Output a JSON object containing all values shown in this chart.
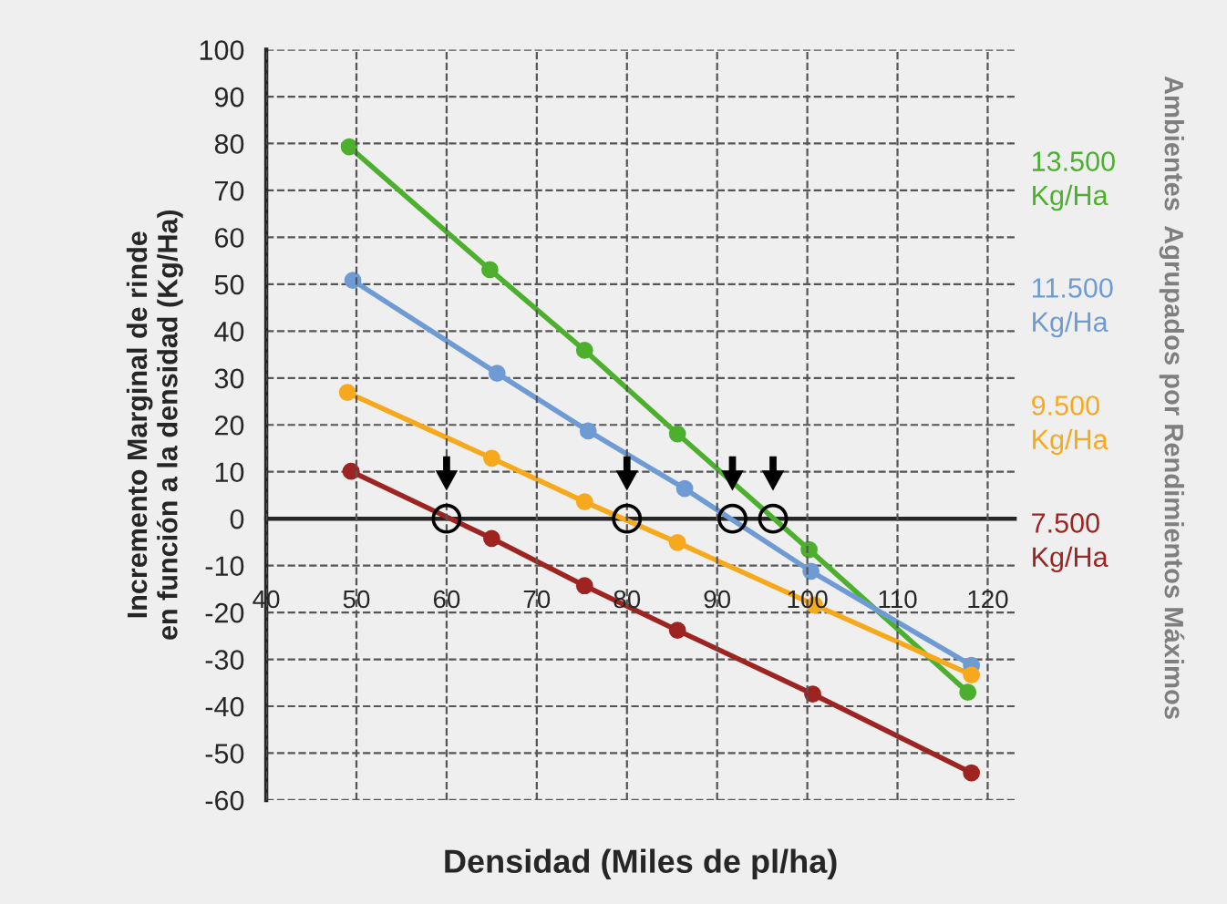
{
  "chart_data": {
    "type": "line",
    "xlabel": "Densidad (Miles de pl/ha)",
    "ylabel": "Incremento Marginal de rinde\nen función a la densidad (Kg/Ha)",
    "legend_title": "Ambientes  Agrupados por Rendimientos Máximos",
    "legend": "right",
    "marker": "circle",
    "line_style": "solid",
    "grid": true,
    "xlim": [
      40,
      123
    ],
    "xticks": [
      40,
      50,
      60,
      70,
      80,
      90,
      100,
      110,
      120
    ],
    "ylim": [
      -60,
      100
    ],
    "yticks": [
      -60,
      -50,
      -40,
      -30,
      -20,
      -10,
      0,
      10,
      20,
      30,
      40,
      50,
      60,
      70,
      80,
      90,
      100
    ],
    "series": [
      {
        "name": "13.500\nKg/Ha",
        "color": "#4cb02e",
        "x": [
          49.2,
          64.8,
          75.3,
          85.6,
          100.2,
          117.8
        ],
        "values": [
          79.3,
          53.1,
          35.9,
          18.1,
          -6.6,
          -37
        ]
      },
      {
        "name": "11.500\nKg/Ha",
        "color": "#6e9bd4",
        "x": [
          49.6,
          65.6,
          75.7,
          86.4,
          100.4,
          118.2
        ],
        "values": [
          50.8,
          31,
          18.7,
          6.4,
          -11.2,
          -31.3
        ]
      },
      {
        "name": "9.500\nKg/Ha",
        "color": "#f7a91d",
        "x": [
          49,
          65,
          75.3,
          85.6,
          100.8,
          118.2
        ],
        "values": [
          26.9,
          12.9,
          3.6,
          -5.1,
          -18.4,
          -33.3
        ]
      },
      {
        "name": "7.500\nKg/Ha",
        "color": "#9e2421",
        "x": [
          49.4,
          65,
          75.3,
          85.6,
          100.6,
          118.2
        ],
        "values": [
          10.1,
          -4.2,
          -14.3,
          -23.8,
          -37.4,
          -54.2
        ]
      },
      {
        "type": "scatter",
        "marker": "circle",
        "color": "#000000",
        "x": [
          60,
          80,
          91.7,
          96.2
        ],
        "values": [
          0,
          0,
          0,
          0
        ]
      }
    ]
  }
}
